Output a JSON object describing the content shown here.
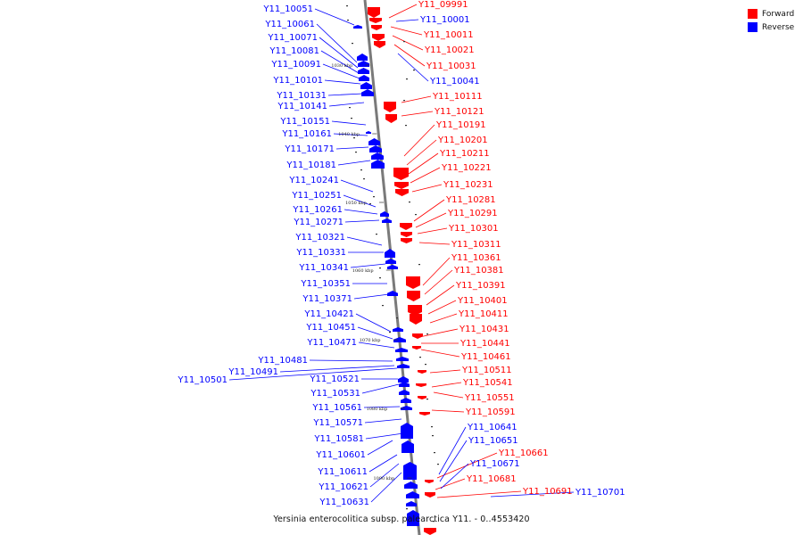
{
  "caption": "Yersinia enterocolitica subsp. palearctica Y11. - 0..4553420",
  "legend": [
    {
      "label": "Forward",
      "color": "#ff0000"
    },
    {
      "label": "Reverse",
      "color": "#0000ff"
    }
  ],
  "colors": {
    "forward": "#ff0000",
    "reverse": "#0000ff",
    "backbone": "#777777"
  },
  "ticks": [
    "1030 kbp",
    "1040 kbp",
    "1050 kbp",
    "1060 kbp",
    "1070 kbp",
    "1080 kbp",
    "1090 kbp"
  ],
  "reverse_genes": [
    "Y11_10051",
    "Y11_10061",
    "Y11_10071",
    "Y11_10081",
    "Y11_10091",
    "Y11_10101",
    "Y11_10131",
    "Y11_10141",
    "Y11_10151",
    "Y11_10161",
    "Y11_10171",
    "Y11_10181",
    "Y11_10241",
    "Y11_10251",
    "Y11_10261",
    "Y11_10271",
    "Y11_10321",
    "Y11_10331",
    "Y11_10341",
    "Y11_10351",
    "Y11_10371",
    "Y11_10421",
    "Y11_10451",
    "Y11_10471",
    "Y11_10481",
    "Y11_10491",
    "Y11_10501",
    "Y11_10521",
    "Y11_10531",
    "Y11_10561",
    "Y11_10571",
    "Y11_10581",
    "Y11_10601",
    "Y11_10611",
    "Y11_10621",
    "Y11_10631"
  ],
  "forward_genes": [
    "Y11_09991",
    "Y11_10011",
    "Y11_10021",
    "Y11_10031",
    "Y11_10111",
    "Y11_10121",
    "Y11_10191",
    "Y11_10201",
    "Y11_10211",
    "Y11_10221",
    "Y11_10231",
    "Y11_10281",
    "Y11_10291",
    "Y11_10301",
    "Y11_10311",
    "Y11_10361",
    "Y11_10381",
    "Y11_10391",
    "Y11_10401",
    "Y11_10411",
    "Y11_10431",
    "Y11_10441",
    "Y11_10461",
    "Y11_10511",
    "Y11_10541",
    "Y11_10551",
    "Y11_10591",
    "Y11_10661",
    "Y11_10681",
    "Y11_10691"
  ],
  "reverse_genes_right": [
    "Y11_10001",
    "Y11_10041",
    "Y11_10641",
    "Y11_10651",
    "Y11_10671",
    "Y11_10701"
  ]
}
